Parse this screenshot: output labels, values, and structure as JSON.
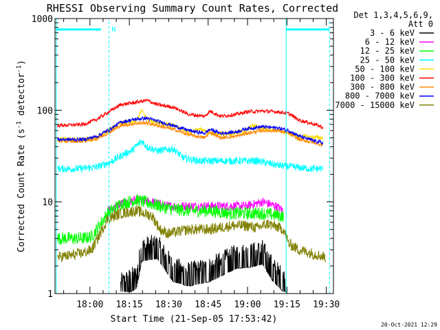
{
  "chart_data": {
    "type": "line",
    "title": "RHESSI Observing Summary Count Rates, Corrected",
    "xlabel": "Start Time (21-Sep-05 17:53:42)",
    "ylabel_main": "Corrected Count Rate (s",
    "ylabel_sup1": "-1",
    "ylabel_mid": " detector",
    "ylabel_sup2": "-1",
    "ylabel_end": ")",
    "y_scale": "log",
    "ylim": [
      1,
      1000
    ],
    "xlim_minutes": [
      -7,
      99
    ],
    "x_ticks": [
      {
        "label": "18:00",
        "min": 6.3
      },
      {
        "label": "18:15",
        "min": 21.3
      },
      {
        "label": "18:30",
        "min": 36.3
      },
      {
        "label": "18:45",
        "min": 51.3
      },
      {
        "label": "19:00",
        "min": 66.3
      },
      {
        "label": "19:15",
        "min": 81.3
      },
      {
        "label": "19:30",
        "min": 96.3
      }
    ],
    "y_ticks": [
      {
        "label": "1",
        "value": 1
      },
      {
        "label": "10",
        "value": 10
      },
      {
        "label": "100",
        "value": 100
      },
      {
        "label": "1000",
        "value": 1000
      }
    ],
    "legend_header": [
      "Det 1,3,4,5,6,9,",
      "Att 0"
    ],
    "legend_placement": "top-right",
    "series": [
      {
        "name": "3 - 6 keV",
        "color": "#000000",
        "points": [
          [
            18,
            1.2
          ],
          [
            24,
            1.5
          ],
          [
            26,
            3
          ],
          [
            32,
            3.2
          ],
          [
            38,
            1.8
          ],
          [
            44,
            1.6
          ],
          [
            52,
            1.8
          ],
          [
            62,
            2.5
          ],
          [
            68,
            2.6
          ],
          [
            72,
            2.8
          ],
          [
            76,
            1.8
          ],
          [
            81,
            1.3
          ]
        ]
      },
      {
        "name": "6 - 12 keV",
        "color": "#ff00ff",
        "points": [
          [
            13,
            8
          ],
          [
            18,
            9.5
          ],
          [
            24,
            10.5
          ],
          [
            30,
            10
          ],
          [
            36,
            9
          ],
          [
            44,
            9
          ],
          [
            52,
            9
          ],
          [
            60,
            9
          ],
          [
            66,
            9
          ],
          [
            72,
            10
          ],
          [
            77,
            9
          ],
          [
            80,
            8
          ]
        ]
      },
      {
        "name": "12 - 25 keV",
        "color": "#00ff00",
        "points": [
          [
            -6,
            4
          ],
          [
            -1,
            4
          ],
          [
            4,
            4
          ],
          [
            7,
            4.2
          ],
          [
            13,
            7.5
          ],
          [
            18,
            9.5
          ],
          [
            24,
            10.5
          ],
          [
            30,
            9.5
          ],
          [
            36,
            8.5
          ],
          [
            44,
            8
          ],
          [
            52,
            8
          ],
          [
            60,
            7.5
          ],
          [
            66,
            7.5
          ],
          [
            72,
            7.5
          ],
          [
            80,
            7
          ]
        ]
      },
      {
        "name": "25 - 50 keV",
        "color": "#00ffff",
        "points": [
          [
            -6,
            23
          ],
          [
            2,
            23
          ],
          [
            9,
            24
          ],
          [
            14,
            27
          ],
          [
            19,
            33
          ],
          [
            22,
            36
          ],
          [
            26,
            46
          ],
          [
            28,
            40
          ],
          [
            32,
            36
          ],
          [
            38,
            38
          ],
          [
            42,
            30
          ],
          [
            48,
            28
          ],
          [
            56,
            28
          ],
          [
            64,
            28
          ],
          [
            70,
            28
          ],
          [
            78,
            25
          ],
          [
            84,
            24
          ],
          [
            90,
            23
          ],
          [
            95,
            23
          ]
        ]
      },
      {
        "name": "50 - 100 keV",
        "color": "#ffdd00",
        "points": [
          [
            -6,
            48
          ],
          [
            4,
            48
          ],
          [
            9,
            50
          ],
          [
            14,
            62
          ],
          [
            18,
            72
          ],
          [
            24,
            76
          ],
          [
            26,
            100
          ],
          [
            28,
            80
          ],
          [
            32,
            74
          ],
          [
            38,
            68
          ],
          [
            44,
            58
          ],
          [
            48,
            62
          ],
          [
            52,
            56
          ],
          [
            60,
            56
          ],
          [
            66,
            60
          ],
          [
            68,
            68
          ],
          [
            72,
            64
          ],
          [
            80,
            58
          ],
          [
            86,
            52
          ],
          [
            95,
            50
          ]
        ]
      },
      {
        "name": "100 - 300 keV",
        "color": "#ff0000",
        "points": [
          [
            -6,
            68
          ],
          [
            4,
            70
          ],
          [
            9,
            80
          ],
          [
            14,
            98
          ],
          [
            18,
            115
          ],
          [
            24,
            122
          ],
          [
            28,
            128
          ],
          [
            32,
            115
          ],
          [
            38,
            108
          ],
          [
            44,
            90
          ],
          [
            50,
            86
          ],
          [
            52,
            98
          ],
          [
            56,
            86
          ],
          [
            62,
            90
          ],
          [
            66,
            96
          ],
          [
            72,
            98
          ],
          [
            78,
            96
          ],
          [
            82,
            92
          ],
          [
            86,
            78
          ],
          [
            92,
            70
          ],
          [
            95,
            65
          ]
        ]
      },
      {
        "name": "300 - 800 keV",
        "color": "#ff8800",
        "points": [
          [
            -6,
            46
          ],
          [
            4,
            46
          ],
          [
            9,
            49
          ],
          [
            14,
            58
          ],
          [
            18,
            68
          ],
          [
            24,
            72
          ],
          [
            28,
            73
          ],
          [
            32,
            68
          ],
          [
            38,
            62
          ],
          [
            44,
            54
          ],
          [
            50,
            50
          ],
          [
            52,
            58
          ],
          [
            56,
            50
          ],
          [
            62,
            52
          ],
          [
            66,
            56
          ],
          [
            72,
            60
          ],
          [
            78,
            60
          ],
          [
            82,
            56
          ],
          [
            86,
            48
          ],
          [
            92,
            44
          ],
          [
            95,
            42
          ]
        ]
      },
      {
        "name": "800 - 7000 keV",
        "color": "#0000ff",
        "points": [
          [
            -6,
            48
          ],
          [
            4,
            48
          ],
          [
            9,
            52
          ],
          [
            14,
            62
          ],
          [
            18,
            74
          ],
          [
            24,
            80
          ],
          [
            28,
            82
          ],
          [
            32,
            76
          ],
          [
            38,
            68
          ],
          [
            44,
            60
          ],
          [
            50,
            56
          ],
          [
            52,
            62
          ],
          [
            56,
            56
          ],
          [
            62,
            58
          ],
          [
            66,
            63
          ],
          [
            72,
            66
          ],
          [
            78,
            64
          ],
          [
            82,
            60
          ],
          [
            86,
            52
          ],
          [
            92,
            46
          ],
          [
            95,
            44
          ]
        ]
      },
      {
        "name": "7000 - 15000 keV",
        "color": "#808000",
        "points": [
          [
            -6,
            2.5
          ],
          [
            -1,
            2.6
          ],
          [
            4,
            2.8
          ],
          [
            7,
            3
          ],
          [
            13,
            6.5
          ],
          [
            18,
            7.5
          ],
          [
            24,
            8
          ],
          [
            30,
            7
          ],
          [
            33,
            5
          ],
          [
            36,
            4.5
          ],
          [
            44,
            5
          ],
          [
            52,
            5
          ],
          [
            60,
            5.5
          ],
          [
            66,
            5.5
          ],
          [
            70,
            5.2
          ],
          [
            74,
            5.8
          ],
          [
            80,
            5
          ],
          [
            82,
            3.5
          ],
          [
            86,
            3
          ],
          [
            96,
            2.5
          ]
        ]
      }
    ],
    "annotations": {
      "attenuator_marker": "N",
      "footer_date": "20-Oct-2021 12:29"
    }
  }
}
